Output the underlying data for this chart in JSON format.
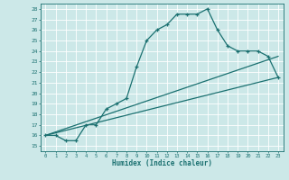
{
  "xlabel": "Humidex (Indice chaleur)",
  "ylabel": "",
  "bg_color": "#cce8e8",
  "grid_color": "#b0d0d0",
  "line_color": "#1a7070",
  "xlim": [
    -0.5,
    23.5
  ],
  "ylim": [
    14.5,
    28.5
  ],
  "xticks": [
    0,
    1,
    2,
    3,
    4,
    5,
    6,
    7,
    8,
    9,
    10,
    11,
    12,
    13,
    14,
    15,
    16,
    17,
    18,
    19,
    20,
    21,
    22,
    23
  ],
  "yticks": [
    15,
    16,
    17,
    18,
    19,
    20,
    21,
    22,
    23,
    24,
    25,
    26,
    27,
    28
  ],
  "curve1_x": [
    0,
    1,
    2,
    3,
    4,
    5,
    6,
    7,
    8,
    9,
    10,
    11,
    12,
    13,
    14,
    15,
    16,
    17,
    18,
    19,
    20,
    21,
    22,
    23
  ],
  "curve1_y": [
    16.0,
    16.0,
    15.5,
    15.5,
    17.0,
    17.0,
    18.5,
    19.0,
    19.5,
    22.5,
    25.0,
    26.0,
    26.5,
    27.5,
    27.5,
    27.5,
    28.0,
    26.0,
    24.5,
    24.0,
    24.0,
    24.0,
    23.5,
    21.5
  ],
  "curve2_x": [
    0,
    23
  ],
  "curve2_y": [
    16.0,
    23.5
  ],
  "curve3_x": [
    0,
    23
  ],
  "curve3_y": [
    16.0,
    21.5
  ],
  "marker": "+"
}
